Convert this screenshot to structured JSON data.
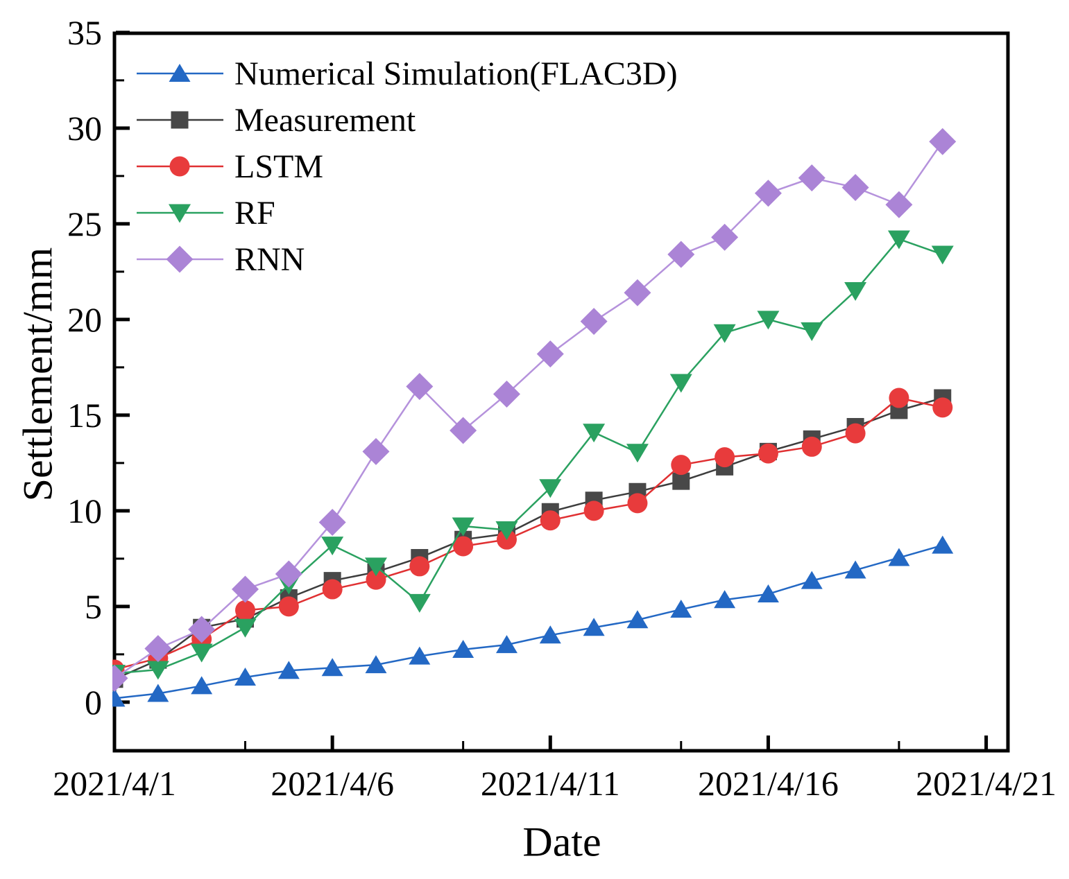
{
  "figure": {
    "background": "#ffffff",
    "frame_color": "#000000"
  },
  "chart_data": {
    "type": "line",
    "title": "",
    "xlabel": "Date",
    "ylabel": "Settlement/mm",
    "grid": false,
    "legend_position": "upper-left",
    "xlim_days": [
      1,
      21.5
    ],
    "ylim": [
      -2.54,
      34.96
    ],
    "x_tick_labels": [
      "2021/4/1",
      "2021/4/6",
      "2021/4/11",
      "2021/4/16",
      "2021/4/21"
    ],
    "x_tick_days": [
      1,
      6,
      11,
      16,
      21
    ],
    "x_minor_tick_days": [
      4,
      9,
      14,
      19
    ],
    "y_ticks": [
      0,
      5,
      10,
      15,
      20,
      25,
      30,
      35
    ],
    "y_minor_ticks": [
      2.5,
      7.5,
      12.5,
      17.5,
      22.5,
      27.5,
      32.5
    ],
    "x_days": [
      1,
      2,
      3,
      4,
      5,
      6,
      7,
      8,
      9,
      10,
      11,
      12,
      13,
      14,
      15,
      16,
      17,
      18,
      19,
      20
    ],
    "x_dates": [
      "2021/4/1",
      "2021/4/2",
      "2021/4/3",
      "2021/4/4",
      "2021/4/5",
      "2021/4/6",
      "2021/4/7",
      "2021/4/8",
      "2021/4/9",
      "2021/4/10",
      "2021/4/11",
      "2021/4/12",
      "2021/4/13",
      "2021/4/14",
      "2021/4/15",
      "2021/4/16",
      "2021/4/17",
      "2021/4/18",
      "2021/4/19",
      "2021/4/20"
    ],
    "series": [
      {
        "name": "Numerical Simulation(FLAC3D)",
        "marker": "triangle-up",
        "color": "#2368c4",
        "line_color": "#2368c4",
        "values": [
          0.2,
          0.45,
          0.85,
          1.3,
          1.65,
          1.8,
          1.95,
          2.4,
          2.75,
          3.0,
          3.5,
          3.9,
          4.3,
          4.85,
          5.35,
          5.65,
          6.35,
          6.9,
          7.55,
          8.2
        ]
      },
      {
        "name": "Measurement",
        "marker": "square",
        "color": "#484848",
        "line_color": "#3d3d3d",
        "values": [
          1.2,
          2.2,
          3.9,
          4.35,
          5.45,
          6.35,
          6.8,
          7.55,
          8.5,
          8.8,
          9.95,
          10.55,
          11.0,
          11.55,
          12.3,
          13.1,
          13.75,
          14.4,
          15.25,
          15.9
        ]
      },
      {
        "name": "LSTM",
        "marker": "circle",
        "color": "#e83b3c",
        "line_color": "#e03032",
        "values": [
          1.7,
          2.3,
          3.3,
          4.8,
          5.0,
          5.9,
          6.4,
          7.1,
          8.15,
          8.5,
          9.5,
          10.0,
          10.4,
          12.4,
          12.8,
          13.0,
          13.35,
          14.05,
          15.9,
          15.4
        ]
      },
      {
        "name": "RF",
        "marker": "triangle-down",
        "color": "#2aa160",
        "line_color": "#2aa160",
        "values": [
          1.5,
          1.7,
          2.6,
          3.9,
          6.15,
          8.2,
          7.1,
          5.2,
          9.2,
          9.0,
          11.2,
          14.1,
          13.05,
          16.7,
          19.3,
          20.0,
          19.4,
          21.5,
          24.2,
          23.4
        ]
      },
      {
        "name": "RNN",
        "marker": "diamond",
        "color": "#ab84d6",
        "line_color": "#b592dc",
        "values": [
          1.25,
          2.8,
          3.8,
          5.9,
          6.7,
          9.4,
          13.1,
          16.5,
          14.2,
          16.1,
          18.2,
          19.9,
          21.4,
          23.4,
          24.3,
          26.6,
          27.4,
          26.9,
          26.0,
          29.3
        ]
      }
    ]
  }
}
